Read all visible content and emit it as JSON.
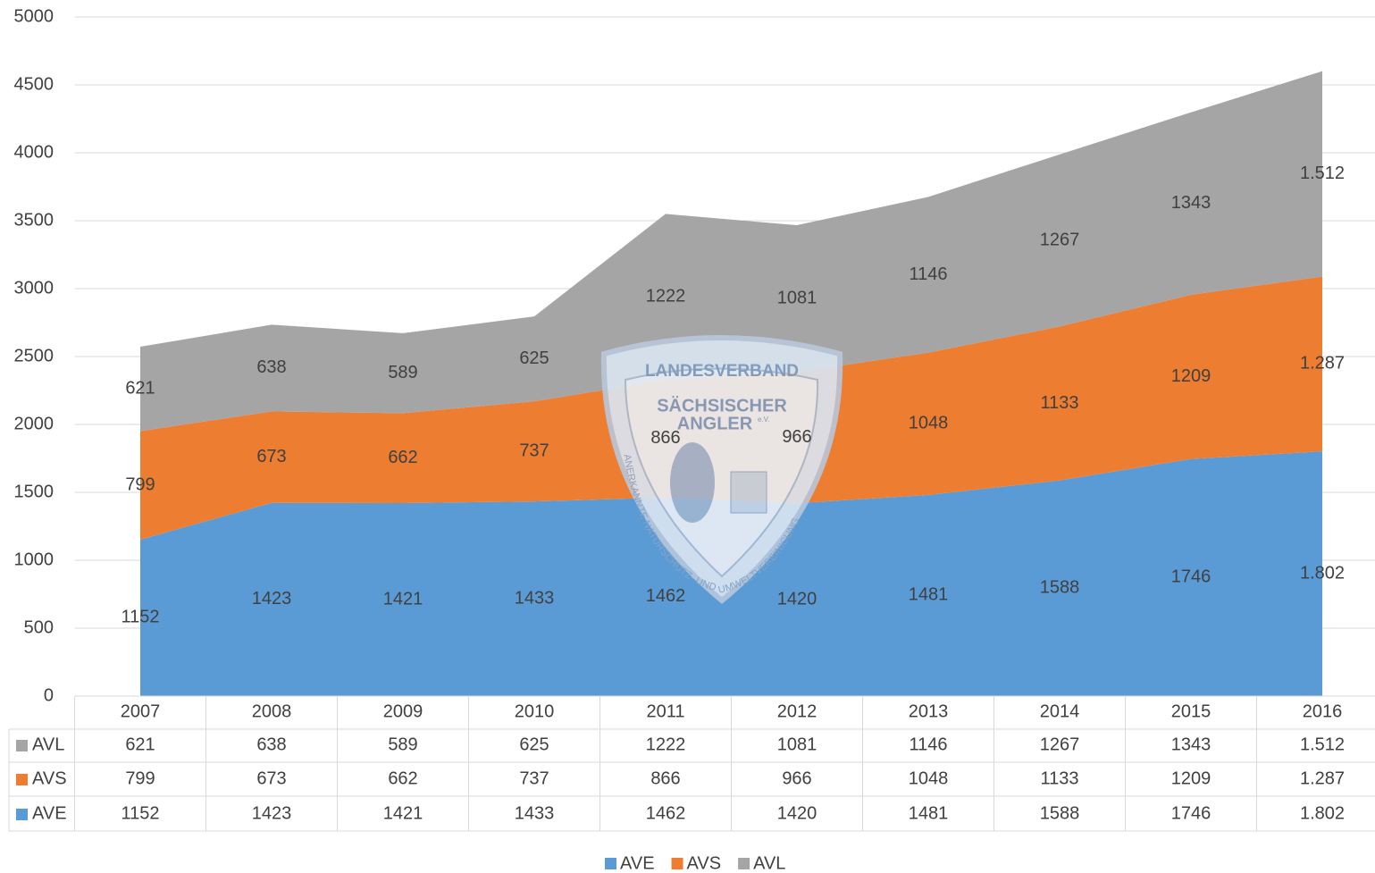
{
  "chart_data": {
    "type": "stacked_area",
    "categories": [
      "2007",
      "2008",
      "2009",
      "2010",
      "2011",
      "2012",
      "2013",
      "2014",
      "2015",
      "2016"
    ],
    "series": [
      {
        "name": "AVE",
        "color": "#5b9bd5",
        "values": [
          1152,
          1423,
          1421,
          1433,
          1462,
          1420,
          1481,
          1588,
          1746,
          1802
        ],
        "value_labels": [
          "1152",
          "1423",
          "1421",
          "1433",
          "1462",
          "1420",
          "1481",
          "1588",
          "1746",
          "1.802"
        ]
      },
      {
        "name": "AVS",
        "color": "#ed7d31",
        "values": [
          799,
          673,
          662,
          737,
          866,
          966,
          1048,
          1133,
          1209,
          1287
        ],
        "value_labels": [
          "799",
          "673",
          "662",
          "737",
          "866",
          "966",
          "1048",
          "1133",
          "1209",
          "1.287"
        ]
      },
      {
        "name": "AVL",
        "color": "#a5a5a5",
        "values": [
          621,
          638,
          589,
          625,
          1222,
          1081,
          1146,
          1267,
          1343,
          1512
        ],
        "value_labels": [
          "621",
          "638",
          "589",
          "625",
          "1222",
          "1081",
          "1146",
          "1267",
          "1343",
          "1.512"
        ]
      }
    ],
    "ylim": [
      0,
      5000
    ],
    "yticks": [
      0,
      500,
      1000,
      1500,
      2000,
      2500,
      3000,
      3500,
      4000,
      4500,
      5000
    ],
    "grid": true,
    "legend": "bottom",
    "data_table": true
  },
  "logo": {
    "line1": "LANDESVERBAND",
    "line2": "SÄCHSISCHER",
    "line3": "ANGLER",
    "suffix": "e.V.",
    "arc": "ANERKANNTE NATURSCHUTZ- UND UMWELTVEREINIGUNG"
  }
}
